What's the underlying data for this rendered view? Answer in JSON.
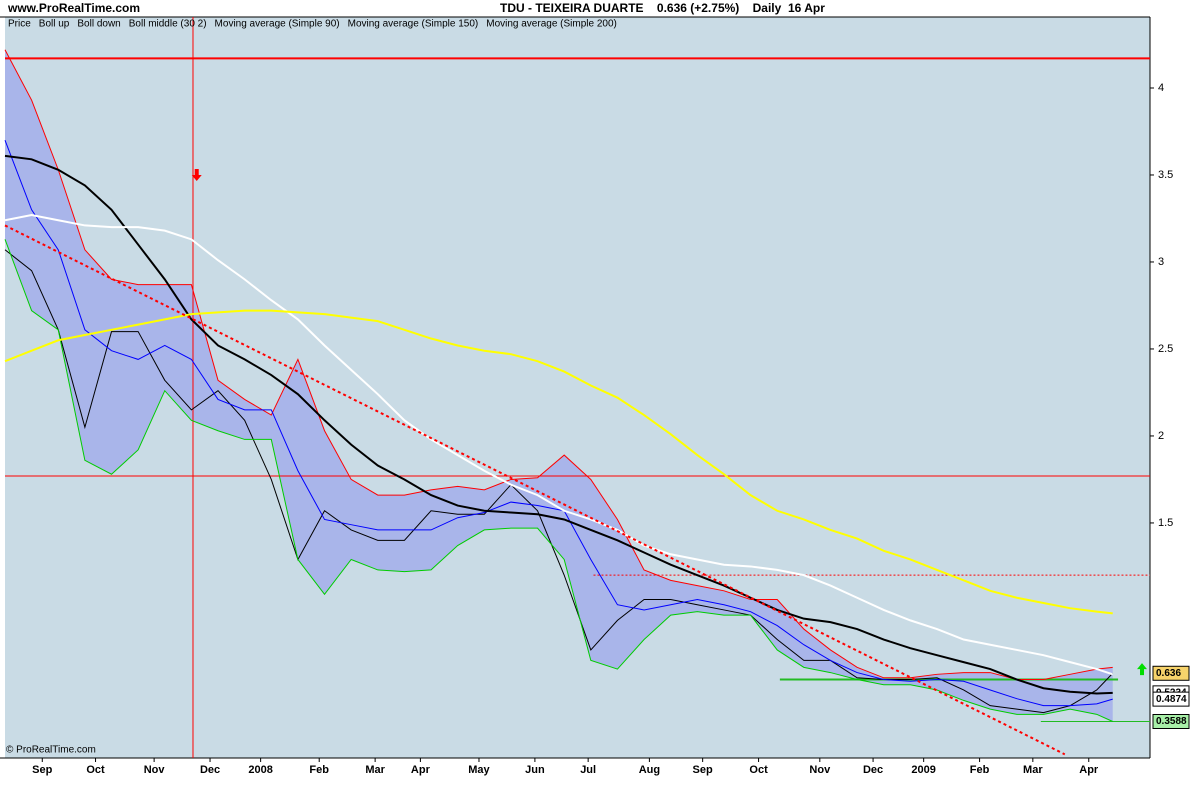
{
  "site": "www.ProRealTime.com",
  "copyright": "© ProRealTime.com",
  "chart_data": {
    "type": "line",
    "title": "TDU - TEIXEIRA DUARTE    0.636 (+2.75%)    Daily  16 Apr",
    "xlim": [
      0,
      430
    ],
    "ylim": [
      0.149,
      4.408
    ],
    "yticks": [
      1.5,
      2,
      2.5,
      3,
      3.5,
      4
    ],
    "xticks": [
      {
        "value": 14,
        "label": "Sep"
      },
      {
        "value": 34,
        "label": "Oct"
      },
      {
        "value": 56,
        "label": "Nov"
      },
      {
        "value": 77,
        "label": "Dec"
      },
      {
        "value": 96,
        "label": "2008"
      },
      {
        "value": 118,
        "label": "Feb"
      },
      {
        "value": 139,
        "label": "Mar"
      },
      {
        "value": 156,
        "label": "Apr"
      },
      {
        "value": 178,
        "label": "May"
      },
      {
        "value": 199,
        "label": "Jun"
      },
      {
        "value": 219,
        "label": "Jul"
      },
      {
        "value": 242,
        "label": "Aug"
      },
      {
        "value": 262,
        "label": "Sep"
      },
      {
        "value": 283,
        "label": "Oct"
      },
      {
        "value": 306,
        "label": "Nov"
      },
      {
        "value": 326,
        "label": "Dec"
      },
      {
        "value": 345,
        "label": "2009"
      },
      {
        "value": 366,
        "label": "Feb"
      },
      {
        "value": 386,
        "label": "Mar"
      },
      {
        "value": 407,
        "label": "Apr"
      }
    ],
    "background": "#c9dbe5",
    "band_color": "#a9b5ea",
    "x": [
      0,
      10,
      20,
      30,
      40,
      50,
      60,
      70,
      80,
      90,
      100,
      110,
      120,
      130,
      140,
      150,
      160,
      170,
      180,
      190,
      200,
      210,
      220,
      230,
      240,
      250,
      260,
      270,
      280,
      290,
      300,
      310,
      320,
      330,
      340,
      350,
      360,
      370,
      380,
      390,
      400,
      410,
      416
    ],
    "series": [
      {
        "name": "Price",
        "color": "#000000",
        "values": [
          3.07,
          2.95,
          2.61,
          2.05,
          2.6,
          2.6,
          2.32,
          2.15,
          2.26,
          2.09,
          1.75,
          1.29,
          1.57,
          1.46,
          1.4,
          1.4,
          1.57,
          1.55,
          1.55,
          1.72,
          1.57,
          1.2,
          0.77,
          0.94,
          1.06,
          1.06,
          1.03,
          1.0,
          0.97,
          0.83,
          0.71,
          0.71,
          0.61,
          0.6,
          0.6,
          0.61,
          0.54,
          0.45,
          0.43,
          0.41,
          0.45,
          0.54,
          0.636
        ]
      },
      {
        "name": "Boll up",
        "color": "#ff0000",
        "values": [
          4.22,
          3.93,
          3.53,
          3.07,
          2.9,
          2.87,
          2.87,
          2.87,
          2.32,
          2.21,
          2.12,
          2.44,
          2.03,
          1.75,
          1.66,
          1.66,
          1.69,
          1.71,
          1.69,
          1.75,
          1.76,
          1.89,
          1.75,
          1.52,
          1.23,
          1.17,
          1.14,
          1.11,
          1.06,
          1.06,
          0.89,
          0.77,
          0.67,
          0.61,
          0.61,
          0.63,
          0.64,
          0.64,
          0.6,
          0.6,
          0.63,
          0.66,
          0.67
        ]
      },
      {
        "name": "Boll down",
        "color": "#00cc00",
        "values": [
          3.13,
          2.72,
          2.61,
          1.86,
          1.78,
          1.92,
          2.26,
          2.09,
          2.03,
          1.98,
          1.98,
          1.29,
          1.09,
          1.29,
          1.23,
          1.22,
          1.23,
          1.37,
          1.46,
          1.47,
          1.47,
          1.29,
          0.71,
          0.66,
          0.83,
          0.97,
          0.99,
          0.97,
          0.97,
          0.77,
          0.67,
          0.64,
          0.6,
          0.57,
          0.57,
          0.54,
          0.48,
          0.43,
          0.4,
          0.4,
          0.43,
          0.4,
          0.3588
        ]
      },
      {
        "name": "Boll middle (30 2)",
        "color": "#0000ff",
        "values": [
          3.7,
          3.3,
          3.07,
          2.61,
          2.49,
          2.44,
          2.52,
          2.44,
          2.21,
          2.15,
          2.15,
          1.8,
          1.52,
          1.49,
          1.46,
          1.46,
          1.46,
          1.53,
          1.56,
          1.62,
          1.6,
          1.57,
          1.29,
          1.03,
          1.0,
          1.03,
          1.06,
          1.03,
          0.99,
          0.91,
          0.8,
          0.71,
          0.64,
          0.6,
          0.59,
          0.6,
          0.59,
          0.54,
          0.49,
          0.45,
          0.45,
          0.46,
          0.4874
        ]
      },
      {
        "name": "Moving average (Simple 90)",
        "color": "#000000",
        "values": [
          3.61,
          3.59,
          3.53,
          3.44,
          3.3,
          3.1,
          2.9,
          2.67,
          2.52,
          2.44,
          2.35,
          2.24,
          2.09,
          1.95,
          1.83,
          1.75,
          1.66,
          1.6,
          1.57,
          1.56,
          1.55,
          1.52,
          1.46,
          1.4,
          1.33,
          1.26,
          1.2,
          1.14,
          1.07,
          1.0,
          0.95,
          0.93,
          0.89,
          0.83,
          0.78,
          0.74,
          0.7,
          0.66,
          0.6,
          0.55,
          0.53,
          0.52,
          0.5234
        ]
      },
      {
        "name": "Moving average (Simple 150)",
        "color": "#ffffff",
        "values": [
          3.24,
          3.27,
          3.24,
          3.21,
          3.2,
          3.2,
          3.18,
          3.13,
          3.01,
          2.9,
          2.78,
          2.67,
          2.52,
          2.38,
          2.24,
          2.09,
          1.98,
          1.89,
          1.8,
          1.72,
          1.66,
          1.57,
          1.52,
          1.46,
          1.37,
          1.32,
          1.29,
          1.26,
          1.25,
          1.23,
          1.2,
          1.14,
          1.07,
          1.0,
          0.94,
          0.89,
          0.83,
          0.8,
          0.77,
          0.74,
          0.7,
          0.66,
          0.63
        ]
      },
      {
        "name": "Moving average (Simple 200)",
        "color": "#ffff00",
        "values": [
          2.43,
          2.49,
          2.55,
          2.58,
          2.61,
          2.64,
          2.67,
          2.7,
          2.71,
          2.72,
          2.72,
          2.71,
          2.7,
          2.68,
          2.66,
          2.61,
          2.56,
          2.52,
          2.49,
          2.47,
          2.43,
          2.37,
          2.29,
          2.22,
          2.12,
          2.01,
          1.89,
          1.78,
          1.66,
          1.57,
          1.52,
          1.46,
          1.41,
          1.34,
          1.29,
          1.23,
          1.17,
          1.11,
          1.07,
          1.04,
          1.01,
          0.99,
          0.98
        ]
      }
    ],
    "hlines": [
      {
        "value": 4.17,
        "color": "#ff0000",
        "style": "thick"
      },
      {
        "value": 1.77,
        "color": "#ff0000",
        "style": "solid"
      },
      {
        "value": 1.2,
        "color": "#ff0000",
        "style": "dotted",
        "from": 221
      },
      {
        "value": 0.6,
        "color": "#22bb22",
        "style": "thick",
        "from": 291,
        "to": 418
      },
      {
        "value": 0.3588,
        "color": "#22bb22",
        "style": "solid",
        "from": 389
      }
    ],
    "vlines": [
      {
        "value": 70.6,
        "color": "#ff0000"
      }
    ],
    "trendline": {
      "x": [
        0,
        398
      ],
      "y": [
        3.21,
        0.17
      ],
      "color": "#ff0000"
    },
    "arrows": [
      {
        "x": 72,
        "y": 3.5,
        "direction": "down",
        "color": "#ff0000"
      },
      {
        "x": 427,
        "y": 0.66,
        "direction": "up",
        "color": "#00dd00"
      }
    ],
    "price_labels": [
      {
        "value": 0.636,
        "bg": "#f7d36b",
        "color": "#000000"
      },
      {
        "value": 0.5234,
        "bg": "#ffffff",
        "color": "#000000"
      },
      {
        "value": 0.4874,
        "bg": "#ffffff",
        "color": "#0000ff"
      },
      {
        "value": 0.3588,
        "bg": "#a8f0a8",
        "color": "#000000"
      }
    ]
  }
}
